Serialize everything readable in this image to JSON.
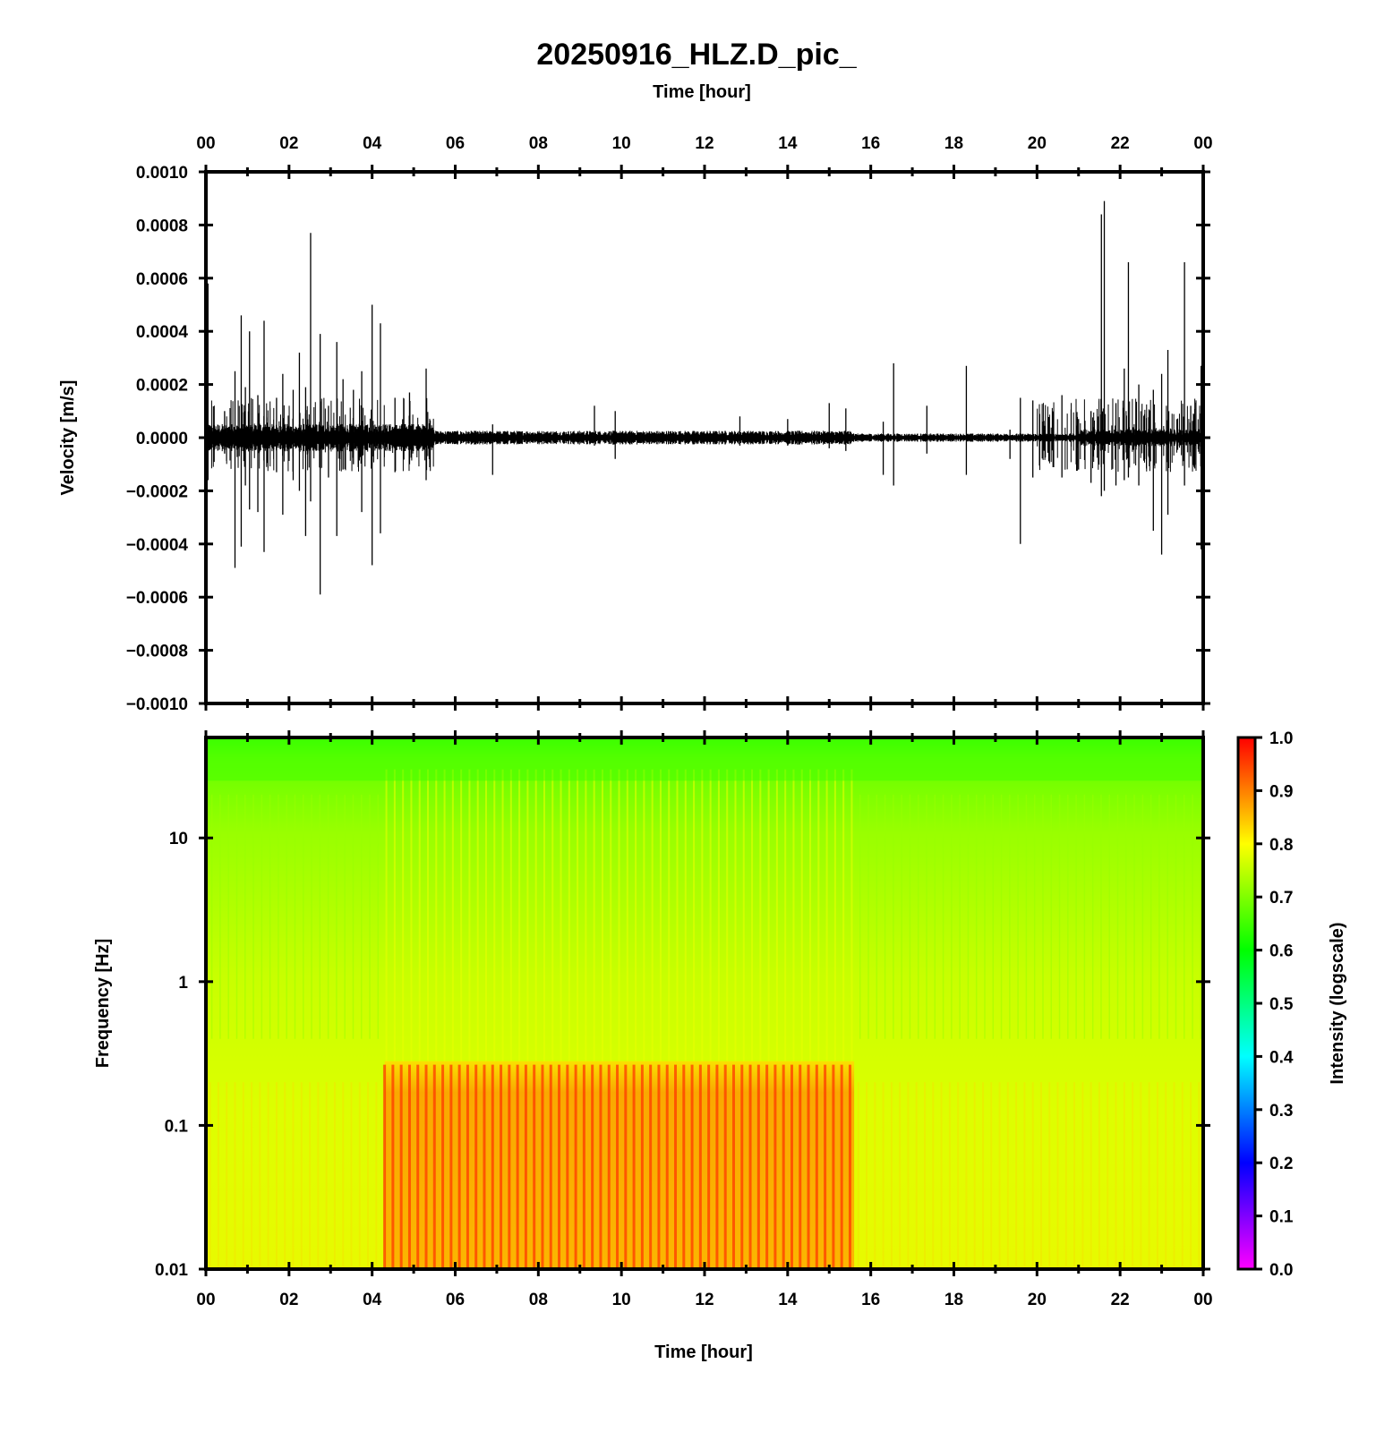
{
  "chart_data": [
    {
      "type": "line",
      "title": "20250916_HLZ.D_pic_",
      "xlabel": "Time [hour]",
      "ylabel": "Velocity [m/s]",
      "xlim": [
        0,
        24
      ],
      "ylim": [
        -0.001,
        0.001
      ],
      "x_tick_labels": [
        "00",
        "02",
        "04",
        "06",
        "08",
        "10",
        "12",
        "14",
        "16",
        "18",
        "20",
        "22",
        "00"
      ],
      "y_tick_labels": [
        "0.0010",
        "0.0008",
        "0.0006",
        "0.0004",
        "0.0002",
        "0.0000",
        "−0.0002",
        "−0.0004",
        "−0.0006",
        "−0.0008",
        "−0.0010"
      ],
      "y_tick_values": [
        0.001,
        0.0008,
        0.0006,
        0.0004,
        0.0002,
        0,
        -0.0002,
        -0.0004,
        -0.0006,
        -0.0008,
        -0.001
      ],
      "series": [
        {
          "values_description_only_for_rendering": null,
          "spikes": [
            {
              "x": 0.05,
              "y_max": 0.00058,
              "y_min": -0.00016
            },
            {
              "x": 0.45,
              "y_max": 0.0001,
              "y_min": -6e-05
            },
            {
              "x": 0.7,
              "y_max": 0.00025,
              "y_min": -0.00049
            },
            {
              "x": 0.85,
              "y_max": 0.00046,
              "y_min": -0.00041
            },
            {
              "x": 0.95,
              "y_max": 0.00019,
              "y_min": -0.00018
            },
            {
              "x": 1.05,
              "y_max": 0.0004,
              "y_min": -0.00027
            },
            {
              "x": 1.25,
              "y_max": 0.00016,
              "y_min": -0.00028
            },
            {
              "x": 1.4,
              "y_max": 0.00044,
              "y_min": -0.00043
            },
            {
              "x": 1.7,
              "y_max": 0.00015,
              "y_min": -0.00013
            },
            {
              "x": 1.85,
              "y_max": 0.00024,
              "y_min": -0.00029
            },
            {
              "x": 2.1,
              "y_max": 0.00018,
              "y_min": -0.00016
            },
            {
              "x": 2.25,
              "y_max": 0.00032,
              "y_min": -0.0002
            },
            {
              "x": 2.4,
              "y_max": 0.00019,
              "y_min": -0.00037
            },
            {
              "x": 2.52,
              "y_max": 0.00077,
              "y_min": -0.00024
            },
            {
              "x": 2.75,
              "y_max": 0.00039,
              "y_min": -0.00059
            },
            {
              "x": 2.95,
              "y_max": 0.00012,
              "y_min": -0.00015
            },
            {
              "x": 3.15,
              "y_max": 0.00036,
              "y_min": -0.00037
            },
            {
              "x": 3.3,
              "y_max": 0.00022,
              "y_min": -0.00012
            },
            {
              "x": 3.55,
              "y_max": 0.00018,
              "y_min": -0.0001
            },
            {
              "x": 3.75,
              "y_max": 0.00025,
              "y_min": -0.00028
            },
            {
              "x": 4.0,
              "y_max": 0.0005,
              "y_min": -0.00048
            },
            {
              "x": 4.2,
              "y_max": 0.00043,
              "y_min": -0.00036
            },
            {
              "x": 4.55,
              "y_max": 0.00015,
              "y_min": -0.00013
            },
            {
              "x": 4.9,
              "y_max": 0.00017,
              "y_min": -0.0001
            },
            {
              "x": 5.3,
              "y_max": 0.00026,
              "y_min": -0.00016
            },
            {
              "x": 6.9,
              "y_max": 5e-05,
              "y_min": -0.00014
            },
            {
              "x": 9.35,
              "y_max": 0.00012,
              "y_min": -3e-05
            },
            {
              "x": 9.85,
              "y_max": 0.0001,
              "y_min": -8e-05
            },
            {
              "x": 12.85,
              "y_max": 8e-05,
              "y_min": -3e-05
            },
            {
              "x": 14.0,
              "y_max": 7e-05,
              "y_min": -3e-05
            },
            {
              "x": 15.0,
              "y_max": 0.00013,
              "y_min": -4e-05
            },
            {
              "x": 15.4,
              "y_max": 0.00011,
              "y_min": -5e-05
            },
            {
              "x": 16.3,
              "y_max": 6e-05,
              "y_min": -0.00014
            },
            {
              "x": 16.55,
              "y_max": 0.00028,
              "y_min": -0.00018
            },
            {
              "x": 17.35,
              "y_max": 0.00012,
              "y_min": -6e-05
            },
            {
              "x": 18.3,
              "y_max": 0.00027,
              "y_min": -0.00014
            },
            {
              "x": 19.35,
              "y_max": 3e-05,
              "y_min": -8e-05
            },
            {
              "x": 19.6,
              "y_max": 0.00015,
              "y_min": -0.0004
            },
            {
              "x": 19.9,
              "y_max": 0.00014,
              "y_min": -0.00015
            },
            {
              "x": 20.6,
              "y_max": 0.00016,
              "y_min": -0.00015
            },
            {
              "x": 21.0,
              "y_max": 7e-05,
              "y_min": -0.00012
            },
            {
              "x": 21.3,
              "y_max": 0.0001,
              "y_min": -0.00017
            },
            {
              "x": 21.55,
              "y_max": 0.00084,
              "y_min": -0.00022
            },
            {
              "x": 21.62,
              "y_max": 0.00089,
              "y_min": -0.0002
            },
            {
              "x": 21.9,
              "y_max": 0.00013,
              "y_min": -0.00018
            },
            {
              "x": 22.1,
              "y_max": 0.00026,
              "y_min": -0.00016
            },
            {
              "x": 22.2,
              "y_max": 0.00066,
              "y_min": -0.00015
            },
            {
              "x": 22.45,
              "y_max": 0.0002,
              "y_min": -0.00018
            },
            {
              "x": 22.8,
              "y_max": 0.00018,
              "y_min": -0.00035
            },
            {
              "x": 23.0,
              "y_max": 0.00024,
              "y_min": -0.00044
            },
            {
              "x": 23.15,
              "y_max": 0.00033,
              "y_min": -0.00029
            },
            {
              "x": 23.55,
              "y_max": 0.00066,
              "y_min": -0.00018
            },
            {
              "x": 23.7,
              "y_max": 0.00012,
              "y_min": -7e-05
            },
            {
              "x": 23.95,
              "y_max": 0.00027,
              "y_min": -0.00042
            }
          ]
        }
      ]
    },
    {
      "type": "heatmap",
      "xlabel": "Time [hour]",
      "ylabel": "Frequency [Hz]",
      "xlim": [
        0,
        24
      ],
      "ylim": [
        0.01,
        50
      ],
      "y_scale": "log",
      "x_tick_labels": [
        "00",
        "02",
        "04",
        "06",
        "08",
        "10",
        "12",
        "14",
        "16",
        "18",
        "20",
        "22",
        "00"
      ],
      "y_tick_labels": [
        "10",
        "1",
        "0.1",
        "0.01"
      ],
      "y_tick_values": [
        10,
        1,
        0.1,
        0.01
      ],
      "colorbar": {
        "label": "Intensity (logscale)",
        "range": [
          0,
          1
        ],
        "tick_labels": [
          "1.0",
          "0.9",
          "0.8",
          "0.7",
          "0.6",
          "0.5",
          "0.4",
          "0.3",
          "0.2",
          "0.1",
          "0.0"
        ],
        "tick_values": [
          1.0,
          0.9,
          0.8,
          0.7,
          0.6,
          0.5,
          0.4,
          0.3,
          0.2,
          0.1,
          0.0
        ],
        "colors": [
          "#ff00ff",
          "#0000ff",
          "#00ffff",
          "#00ff00",
          "#ffff00",
          "#ff0000"
        ]
      },
      "intensity_description": {
        "top_band_hz_above_20": 0.65,
        "background_0_01_to_1_hz": 0.8,
        "background_1_to_10_hz": 0.76,
        "high_intensity_block": {
          "x_start": 4.3,
          "x_end": 15.6,
          "y_max_hz": 0.28,
          "intensity": 0.9
        }
      }
    }
  ]
}
